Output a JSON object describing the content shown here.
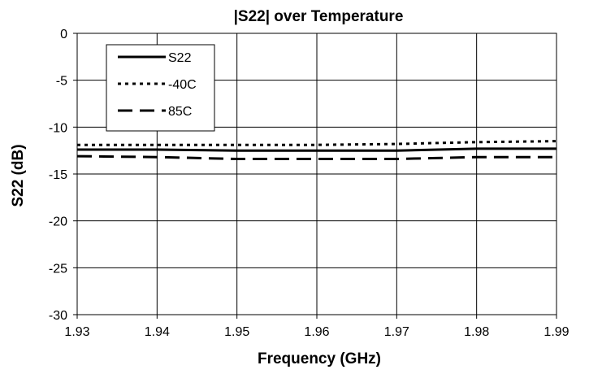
{
  "chart_data": {
    "type": "line",
    "title": "|S22| over Temperature",
    "xlabel": "Frequency (GHz)",
    "ylabel": "S22 (dB)",
    "xlim": [
      1.93,
      1.99
    ],
    "ylim": [
      -30,
      0
    ],
    "x_ticks": [
      "1.93",
      "1.94",
      "1.95",
      "1.96",
      "1.97",
      "1.98",
      "1.99"
    ],
    "y_ticks": [
      "0",
      "-5",
      "-10",
      "-15",
      "-20",
      "-25",
      "-30"
    ],
    "grid": true,
    "legend_position": "top-left",
    "series": [
      {
        "name": "S22",
        "style": "solid",
        "color": "#000000",
        "x": [
          1.93,
          1.94,
          1.95,
          1.96,
          1.97,
          1.98,
          1.99
        ],
        "y": [
          -12.4,
          -12.4,
          -12.5,
          -12.5,
          -12.5,
          -12.3,
          -12.3
        ]
      },
      {
        "name": "-40C",
        "style": "dotted",
        "color": "#000000",
        "x": [
          1.93,
          1.94,
          1.95,
          1.96,
          1.97,
          1.975,
          1.98,
          1.99
        ],
        "y": [
          -11.9,
          -11.9,
          -11.9,
          -11.9,
          -11.8,
          -11.7,
          -11.6,
          -11.5
        ]
      },
      {
        "name": "85C",
        "style": "dashed",
        "color": "#000000",
        "x": [
          1.93,
          1.94,
          1.95,
          1.96,
          1.97,
          1.975,
          1.98,
          1.99
        ],
        "y": [
          -13.1,
          -13.2,
          -13.4,
          -13.4,
          -13.4,
          -13.3,
          -13.2,
          -13.2
        ]
      }
    ]
  }
}
